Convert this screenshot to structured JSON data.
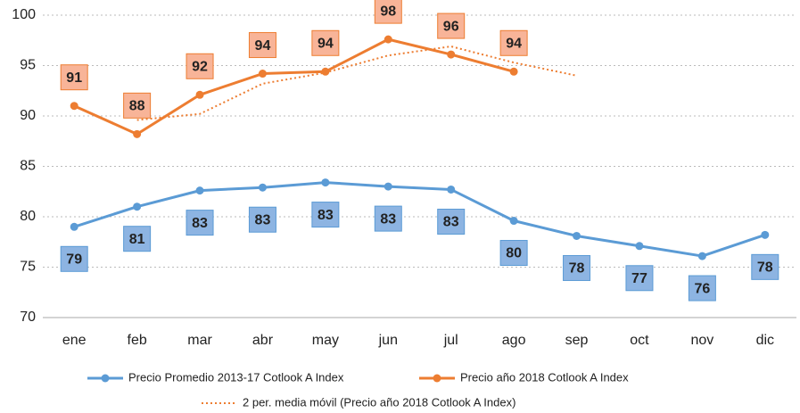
{
  "chart_data": {
    "type": "line",
    "categories": [
      "ene",
      "feb",
      "mar",
      "abr",
      "may",
      "jun",
      "jul",
      "ago",
      "sep",
      "oct",
      "nov",
      "dic"
    ],
    "series": [
      {
        "name": "Precio Promedio 2013-17 Cotlook A Index",
        "color": "#5b9bd5",
        "style": "solid",
        "markers": true,
        "label_position": "below",
        "label_fill": "#8db4e2",
        "values": [
          79.0,
          81.0,
          82.6,
          82.9,
          83.4,
          83.0,
          82.7,
          79.6,
          78.1,
          77.1,
          76.1,
          78.2
        ],
        "value_labels": [
          "79",
          "81",
          "83",
          "83",
          "83",
          "83",
          "83",
          "80",
          "78",
          "77",
          "76",
          "78"
        ]
      },
      {
        "name": "Precio año 2018 Cotlook A Index",
        "color": "#ed7d31",
        "style": "solid",
        "markers": true,
        "label_position": "above",
        "label_fill": "#f8b498",
        "values": [
          91.0,
          88.2,
          92.1,
          94.2,
          94.4,
          97.6,
          96.1,
          94.4,
          null,
          null,
          null,
          null
        ],
        "value_labels": [
          "91",
          "88",
          "92",
          "94",
          "94",
          "98",
          "96",
          "94",
          null,
          null,
          null,
          null
        ]
      },
      {
        "name": "2 per. media móvil (Precio año 2018 Cotlook A Index)",
        "color": "#ed7d31",
        "style": "dotted",
        "markers": false,
        "values": [
          null,
          89.6,
          90.2,
          93.2,
          94.3,
          96.0,
          96.9,
          95.3,
          94.0,
          null,
          null,
          null
        ]
      }
    ],
    "ylim": [
      70,
      100
    ],
    "yticks": [
      70,
      75,
      80,
      85,
      90,
      95,
      100
    ],
    "grid": true
  }
}
